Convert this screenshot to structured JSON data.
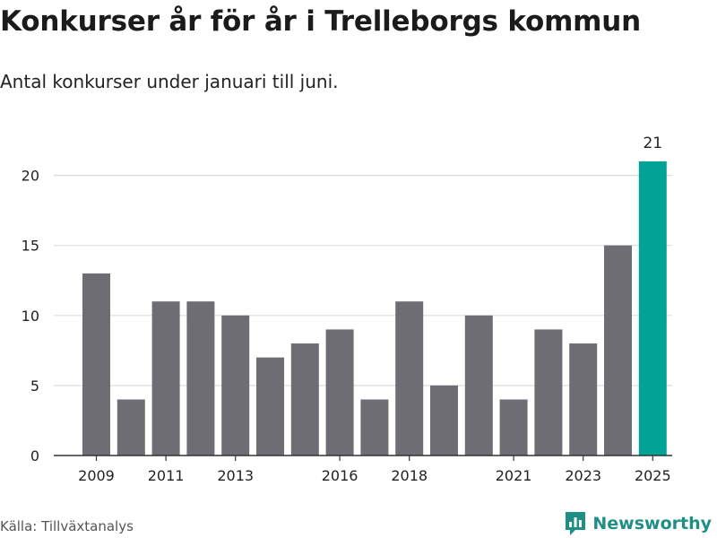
{
  "title": "Konkurser år för år i Trelleborgs kommun",
  "subtitle": "Antal konkurser under januari till juni.",
  "source": "Källa: Tillväxtanalys",
  "brand": {
    "name": "Newsworthy",
    "icon": "bar-chart-logo-icon"
  },
  "colors": {
    "bar": "#6e6d74",
    "highlight": "#00a396",
    "grid": "#dddddd",
    "axis": "#333333"
  },
  "chart_data": {
    "type": "bar",
    "categories": [
      "2009",
      "2010",
      "2011",
      "2012",
      "2013",
      "2014",
      "2015",
      "2016",
      "2017",
      "2018",
      "2019",
      "2020",
      "2021",
      "2022",
      "2023",
      "2024",
      "2025"
    ],
    "values": [
      13,
      4,
      11,
      11,
      10,
      7,
      8,
      9,
      4,
      11,
      5,
      10,
      4,
      9,
      8,
      15,
      21
    ],
    "x_tick_labels": [
      "2009",
      "2011",
      "2013",
      "2016",
      "2018",
      "2021",
      "2023",
      "2025"
    ],
    "y_ticks": [
      0,
      5,
      10,
      15,
      20
    ],
    "ylim": [
      0,
      21
    ],
    "highlight_category": "2025",
    "data_labels": [
      {
        "category": "2025",
        "value": "21"
      }
    ],
    "grid": true,
    "title": "Konkurser år för år i Trelleborgs kommun",
    "subtitle": "Antal konkurser under januari till juni."
  }
}
